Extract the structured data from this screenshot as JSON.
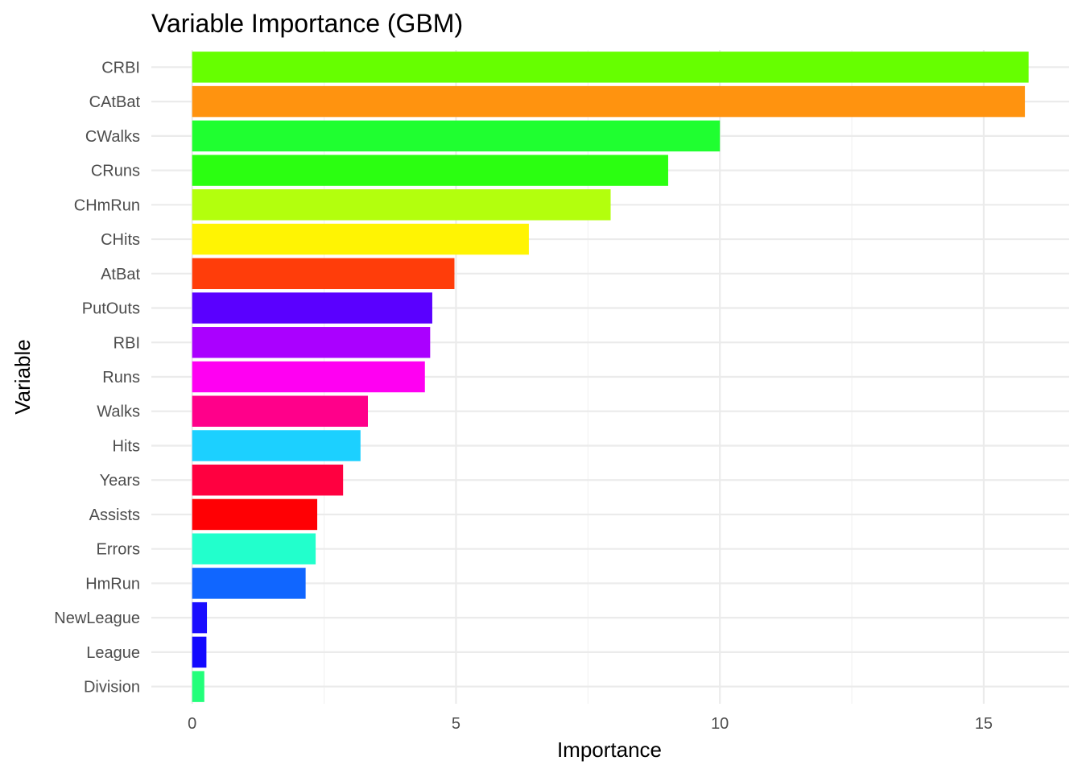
{
  "chart_data": {
    "type": "bar",
    "orientation": "horizontal",
    "title": "Variable Importance (GBM)",
    "xlabel": "Importance",
    "ylabel": "Variable",
    "xlim": [
      0,
      16.5
    ],
    "x_ticks": [
      0,
      5,
      10,
      15
    ],
    "grid": true,
    "legend": "none",
    "bars": [
      {
        "category": "CRBI",
        "value": 15.85,
        "color": "#66ff00"
      },
      {
        "category": "CAtBat",
        "value": 15.78,
        "color": "#ff930f"
      },
      {
        "category": "CWalks",
        "value": 10.0,
        "color": "#1fff30"
      },
      {
        "category": "CRuns",
        "value": 9.02,
        "color": "#2bff11"
      },
      {
        "category": "CHmRun",
        "value": 7.93,
        "color": "#b3ff0d"
      },
      {
        "category": "CHits",
        "value": 6.38,
        "color": "#fff403"
      },
      {
        "category": "AtBat",
        "value": 4.97,
        "color": "#ff3d0a"
      },
      {
        "category": "PutOuts",
        "value": 4.55,
        "color": "#5a00ff"
      },
      {
        "category": "RBI",
        "value": 4.51,
        "color": "#aa00ff"
      },
      {
        "category": "Runs",
        "value": 4.41,
        "color": "#ff00f2"
      },
      {
        "category": "Walks",
        "value": 3.33,
        "color": "#ff008a"
      },
      {
        "category": "Hits",
        "value": 3.19,
        "color": "#1cd0ff"
      },
      {
        "category": "Years",
        "value": 2.86,
        "color": "#ff0040"
      },
      {
        "category": "Assists",
        "value": 2.37,
        "color": "#ff0004"
      },
      {
        "category": "Errors",
        "value": 2.34,
        "color": "#22ffcc"
      },
      {
        "category": "HmRun",
        "value": 2.15,
        "color": "#1066ff"
      },
      {
        "category": "NewLeague",
        "value": 0.28,
        "color": "#1a0dff"
      },
      {
        "category": "League",
        "value": 0.27,
        "color": "#1208ff"
      },
      {
        "category": "Division",
        "value": 0.23,
        "color": "#22ff7a"
      }
    ]
  }
}
